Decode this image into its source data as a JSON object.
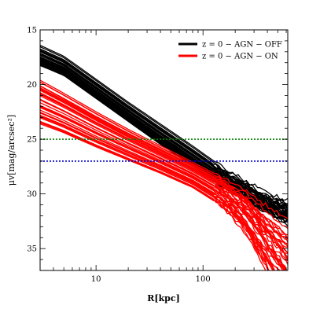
{
  "chart_data": {
    "type": "line",
    "title": "",
    "xlabel": "R[kpc]",
    "ylabel": "μv[mag/arcsec²]",
    "xscale": "log",
    "yinverted": true,
    "xlim": [
      3,
      620
    ],
    "ylim": [
      15,
      37
    ],
    "xticks": [
      10,
      100
    ],
    "xtick_labels": [
      "10",
      "100"
    ],
    "yticks": [
      15,
      20,
      25,
      30,
      35
    ],
    "ytick_labels": [
      "15",
      "20",
      "25",
      "30",
      "35"
    ],
    "legend_position": "top-right",
    "legend": [
      {
        "label": "z = 0 − AGN − OFF",
        "color": "#000000"
      },
      {
        "label": "z = 0 − AGN − ON",
        "color": "#ff0000"
      }
    ],
    "reference_lines": [
      {
        "y": 25,
        "color": "#008000",
        "style": "dotted"
      },
      {
        "y": 27,
        "color": "#0000cc",
        "style": "dotted"
      }
    ],
    "series": [
      {
        "group": "AGN-OFF",
        "color": "#000000",
        "x": [
          3,
          5,
          10,
          20,
          40,
          80,
          150,
          250,
          400,
          620
        ],
        "y": [
          17.3,
          18.3,
          20.4,
          22.5,
          24.6,
          26.6,
          28.4,
          29.6,
          30.6,
          31.2
        ],
        "envelope_low": [
          16.4,
          17.4,
          19.5,
          21.6,
          23.6,
          25.6,
          27.5,
          28.8,
          29.9,
          30.4
        ],
        "envelope_high": [
          18.2,
          19.1,
          21.2,
          23.3,
          25.4,
          27.4,
          29.2,
          30.4,
          31.5,
          32.4
        ]
      },
      {
        "group": "AGN-ON",
        "color": "#ff0000",
        "x": [
          3,
          5,
          10,
          20,
          40,
          80,
          150,
          250,
          400,
          620
        ],
        "y": [
          21.5,
          22.6,
          24.2,
          25.6,
          26.9,
          28.2,
          29.6,
          30.9,
          32.4,
          34.0
        ],
        "envelope_low": [
          19.7,
          20.9,
          22.6,
          24.2,
          25.7,
          27.2,
          28.6,
          29.6,
          30.8,
          31.6
        ],
        "envelope_high": [
          23.6,
          24.4,
          25.7,
          26.9,
          28.1,
          29.4,
          31.1,
          33.0,
          35.5,
          37.0
        ]
      }
    ]
  }
}
